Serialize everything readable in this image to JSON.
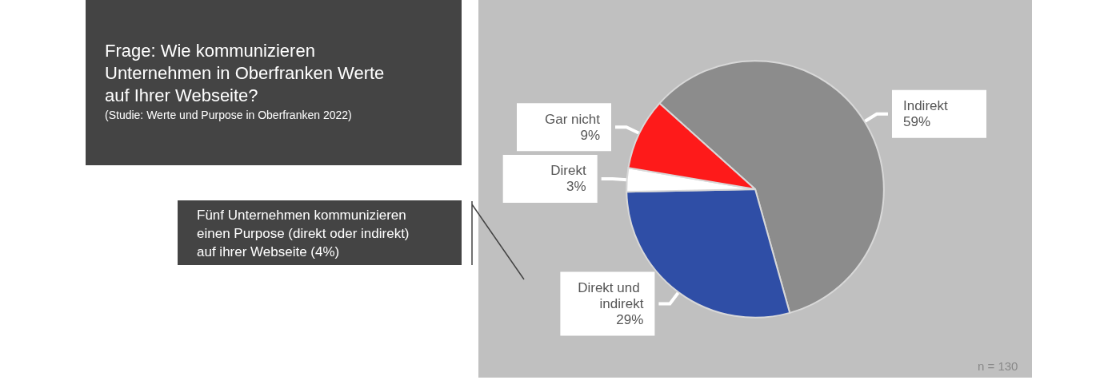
{
  "chart_data": {
    "type": "pie",
    "title": "Frage: Wie kommunizieren Unternehmen in Oberfranken Werte auf Ihrer Webseite?",
    "subtitle": "(Studie: Werte und Purpose in Oberfranken 2022)",
    "categories": [
      "Indirekt",
      "Direkt und indirekt",
      "Direkt",
      "Gar nicht"
    ],
    "values": [
      59,
      29,
      3,
      9
    ],
    "colors": [
      "#8c8c8c",
      "#2f4ea6",
      "#ffffff",
      "#fe1a1a"
    ],
    "value_labels": [
      "59%",
      "29%",
      "3%",
      "9%"
    ],
    "legend": false,
    "annotations": [
      "Fünf Unternehmen kommunizieren einen Purpose (direkt oder indirekt) auf ihrer Webseite (4%)",
      "n = 130"
    ]
  }
}
